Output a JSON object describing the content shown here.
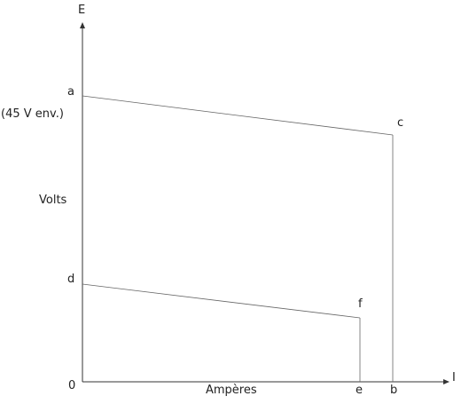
{
  "axes": {
    "y_symbol": "E",
    "x_symbol": "I",
    "origin": "0",
    "y_title": "Volts",
    "x_title": "Ampères",
    "voltage_note": "(45 V env.)"
  },
  "points": {
    "a": "a",
    "b": "b",
    "c": "c",
    "d": "d",
    "e": "e",
    "f": "f"
  },
  "colors": {
    "axis": "#333333",
    "line": "#666666",
    "text": "#222222"
  }
}
